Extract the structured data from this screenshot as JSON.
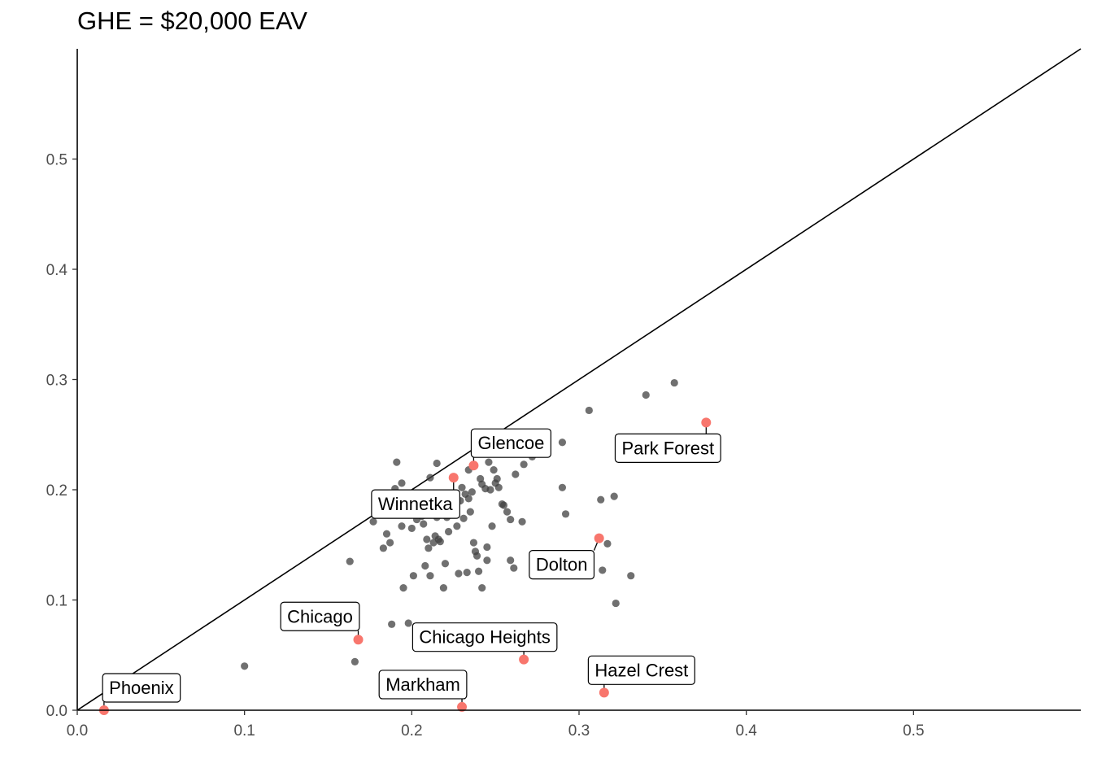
{
  "chart_data": {
    "type": "scatter",
    "title": "GHE = $20,000 EAV",
    "xlabel": "",
    "ylabel": "",
    "xlim": [
      0,
      0.6
    ],
    "ylim": [
      0,
      0.6
    ],
    "x_ticks": [
      0.0,
      0.1,
      0.2,
      0.3,
      0.4,
      0.5
    ],
    "y_ticks": [
      0.0,
      0.1,
      0.2,
      0.3,
      0.4,
      0.5
    ],
    "x_tick_labels": [
      "0.0",
      "0.1",
      "0.2",
      "0.3",
      "0.4",
      "0.5"
    ],
    "y_tick_labels": [
      "0.0",
      "0.1",
      "0.2",
      "0.3",
      "0.4",
      "0.5"
    ],
    "grid": false,
    "reference_line": {
      "slope": 1,
      "intercept": 0
    },
    "colors": {
      "points": "#404040",
      "highlight": "#f8766d",
      "line": "#000000"
    },
    "points": [
      [
        0.1,
        0.04
      ],
      [
        0.163,
        0.135
      ],
      [
        0.166,
        0.044
      ],
      [
        0.177,
        0.171
      ],
      [
        0.183,
        0.147
      ],
      [
        0.185,
        0.16
      ],
      [
        0.187,
        0.152
      ],
      [
        0.188,
        0.078
      ],
      [
        0.19,
        0.201
      ],
      [
        0.191,
        0.225
      ],
      [
        0.193,
        0.182
      ],
      [
        0.194,
        0.206
      ],
      [
        0.194,
        0.167
      ],
      [
        0.195,
        0.111
      ],
      [
        0.198,
        0.079
      ],
      [
        0.199,
        0.19
      ],
      [
        0.2,
        0.165
      ],
      [
        0.201,
        0.122
      ],
      [
        0.203,
        0.173
      ],
      [
        0.204,
        0.18
      ],
      [
        0.205,
        0.195
      ],
      [
        0.206,
        0.176
      ],
      [
        0.207,
        0.169
      ],
      [
        0.208,
        0.131
      ],
      [
        0.209,
        0.155
      ],
      [
        0.21,
        0.147
      ],
      [
        0.211,
        0.122
      ],
      [
        0.211,
        0.211
      ],
      [
        0.212,
        0.183
      ],
      [
        0.213,
        0.152
      ],
      [
        0.214,
        0.158
      ],
      [
        0.215,
        0.175
      ],
      [
        0.215,
        0.224
      ],
      [
        0.216,
        0.155
      ],
      [
        0.217,
        0.153
      ],
      [
        0.218,
        0.185
      ],
      [
        0.219,
        0.111
      ],
      [
        0.22,
        0.133
      ],
      [
        0.221,
        0.175
      ],
      [
        0.222,
        0.162
      ],
      [
        0.223,
        0.195
      ],
      [
        0.226,
        0.186
      ],
      [
        0.227,
        0.167
      ],
      [
        0.228,
        0.124
      ],
      [
        0.229,
        0.19
      ],
      [
        0.23,
        0.202
      ],
      [
        0.231,
        0.174
      ],
      [
        0.232,
        0.196
      ],
      [
        0.233,
        0.125
      ],
      [
        0.234,
        0.218
      ],
      [
        0.234,
        0.192
      ],
      [
        0.235,
        0.18
      ],
      [
        0.236,
        0.198
      ],
      [
        0.237,
        0.152
      ],
      [
        0.238,
        0.144
      ],
      [
        0.239,
        0.14
      ],
      [
        0.24,
        0.126
      ],
      [
        0.241,
        0.21
      ],
      [
        0.242,
        0.205
      ],
      [
        0.242,
        0.111
      ],
      [
        0.244,
        0.201
      ],
      [
        0.245,
        0.148
      ],
      [
        0.245,
        0.136
      ],
      [
        0.246,
        0.225
      ],
      [
        0.247,
        0.2
      ],
      [
        0.248,
        0.167
      ],
      [
        0.249,
        0.218
      ],
      [
        0.25,
        0.206
      ],
      [
        0.251,
        0.21
      ],
      [
        0.252,
        0.202
      ],
      [
        0.254,
        0.187
      ],
      [
        0.255,
        0.186
      ],
      [
        0.257,
        0.18
      ],
      [
        0.259,
        0.173
      ],
      [
        0.259,
        0.136
      ],
      [
        0.261,
        0.129
      ],
      [
        0.262,
        0.214
      ],
      [
        0.266,
        0.171
      ],
      [
        0.267,
        0.223
      ],
      [
        0.272,
        0.23
      ],
      [
        0.29,
        0.243
      ],
      [
        0.29,
        0.202
      ],
      [
        0.292,
        0.178
      ],
      [
        0.306,
        0.272
      ],
      [
        0.313,
        0.191
      ],
      [
        0.314,
        0.127
      ],
      [
        0.317,
        0.151
      ],
      [
        0.321,
        0.194
      ],
      [
        0.322,
        0.097
      ],
      [
        0.331,
        0.122
      ],
      [
        0.34,
        0.286
      ],
      [
        0.357,
        0.297
      ]
    ],
    "highlighted": [
      {
        "label": "Glencoe",
        "x": 0.237,
        "y": 0.222
      },
      {
        "label": "Park Forest",
        "x": 0.376,
        "y": 0.261
      },
      {
        "label": "Winnetka",
        "x": 0.225,
        "y": 0.211
      },
      {
        "label": "Dolton",
        "x": 0.312,
        "y": 0.156
      },
      {
        "label": "Chicago",
        "x": 0.168,
        "y": 0.064
      },
      {
        "label": "Chicago Heights",
        "x": 0.267,
        "y": 0.046
      },
      {
        "label": "Hazel Crest",
        "x": 0.315,
        "y": 0.016
      },
      {
        "label": "Markham",
        "x": 0.23,
        "y": 0.003
      },
      {
        "label": "Phoenix",
        "x": 0.016,
        "y": 0.0
      }
    ]
  }
}
